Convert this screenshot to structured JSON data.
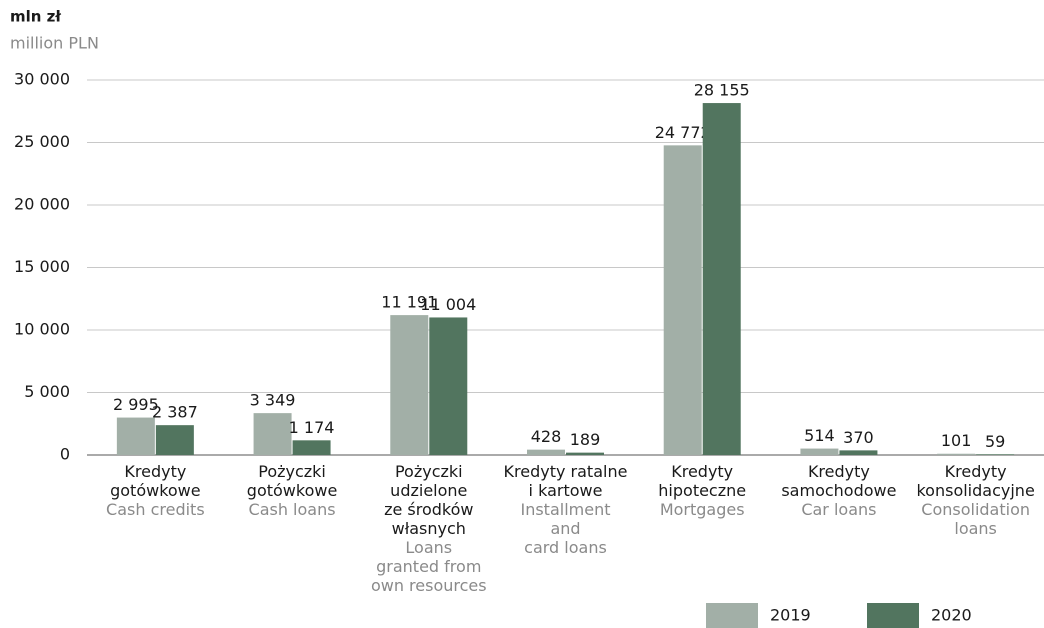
{
  "chart_data": {
    "type": "bar",
    "y_label": "mln zł",
    "y_label_en": "million PLN",
    "categories": [
      "Kredyty\ngotówkowe",
      "Pożyczki\ngotówkowe",
      "Pożyczki\nudzielone\nze środków\nwłasnych",
      "Kredyty ratalne\ni kartowe",
      "Kredyty\nhipoteczne",
      "Kredyty\nsamochodowe",
      "Kredyty\nkonsolidacyjne"
    ],
    "categories_en": [
      "Cash credits",
      "Cash loans",
      "Loans\ngranted from\nown resources",
      "Installment\nand\ncard loans",
      "Mortgages",
      "Car loans",
      "Consolidation\nloans"
    ],
    "series": [
      {
        "name": "2019",
        "color": "#a2afa7",
        "values": [
          2995,
          3349,
          11191,
          428,
          24772,
          514,
          101
        ],
        "value_labels": [
          "2 995",
          "3 349",
          "11 191",
          "428",
          "24 772",
          "514",
          "101"
        ]
      },
      {
        "name": "2020",
        "color": "#52755f",
        "values": [
          2387,
          1174,
          11004,
          189,
          28155,
          370,
          59
        ],
        "value_labels": [
          "2 387",
          "1 174",
          "11 004",
          "189",
          "28 155",
          "370",
          "59"
        ]
      }
    ],
    "ylim": [
      0,
      30000
    ],
    "yticks": [
      0,
      {
        "value": 5000,
        "label": "5 000"
      },
      {
        "value": 10000,
        "label": "10 000"
      },
      {
        "value": 15000,
        "label": "15 000"
      },
      {
        "value": 20000,
        "label": "20 000"
      },
      {
        "value": 25000,
        "label": "25 000"
      },
      {
        "value": 30000,
        "label": "30 000"
      }
    ],
    "grid": true
  }
}
